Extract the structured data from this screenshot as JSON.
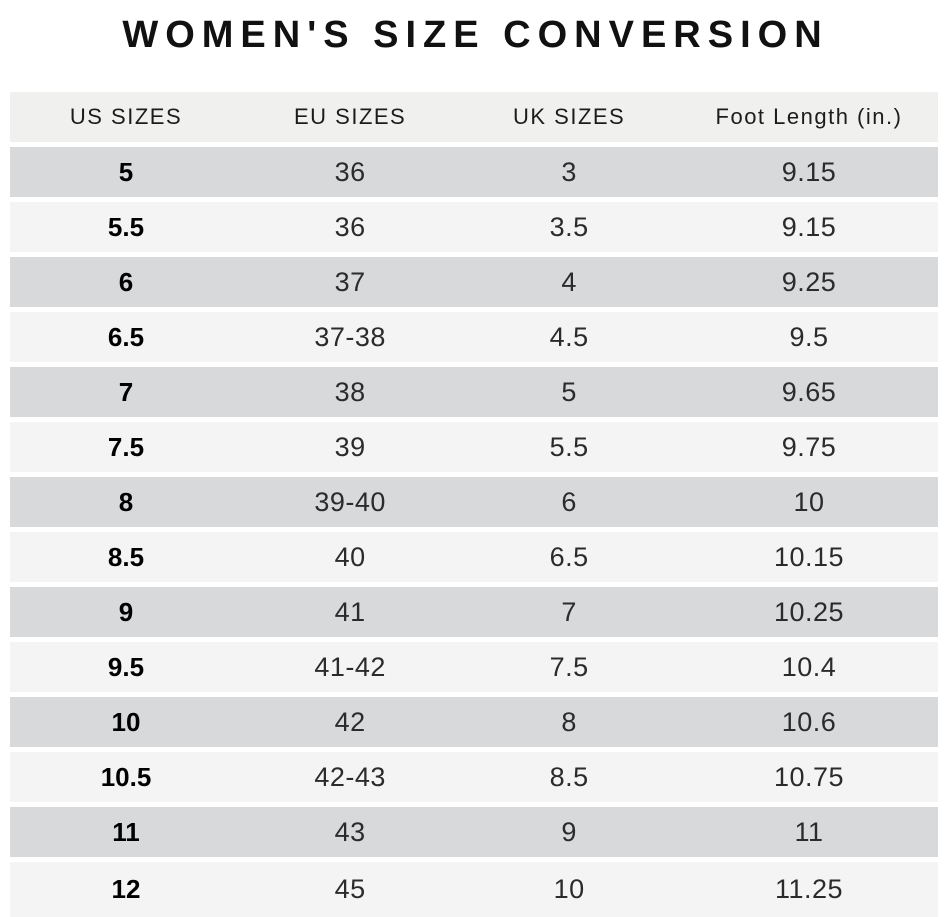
{
  "title": "WOMEN'S SIZE CONVERSION",
  "chart_data": {
    "type": "table",
    "title": "WOMEN'S SIZE CONVERSION",
    "columns": [
      "US SIZES",
      "EU SIZES",
      "UK SIZES",
      "Foot Length (in.)"
    ],
    "rows": [
      [
        "5",
        "36",
        "3",
        "9.15"
      ],
      [
        "5.5",
        "36",
        "3.5",
        "9.15"
      ],
      [
        "6",
        "37",
        "4",
        "9.25"
      ],
      [
        "6.5",
        "37-38",
        "4.5",
        "9.5"
      ],
      [
        "7",
        "38",
        "5",
        "9.65"
      ],
      [
        "7.5",
        "39",
        "5.5",
        "9.75"
      ],
      [
        "8",
        "39-40",
        "6",
        "10"
      ],
      [
        "8.5",
        "40",
        "6.5",
        "10.15"
      ],
      [
        "9",
        "41",
        "7",
        "10.25"
      ],
      [
        "9.5",
        "41-42",
        "7.5",
        "10.4"
      ],
      [
        "10",
        "42",
        "8",
        "10.6"
      ],
      [
        "10.5",
        "42-43",
        "8.5",
        "10.75"
      ],
      [
        "11",
        "43",
        "9",
        "11"
      ],
      [
        "12",
        "45",
        "10",
        "11.25"
      ]
    ],
    "layout": {
      "stripe_pattern": "first-row-dark-alternating",
      "column_alignment": "center"
    }
  },
  "colors": {
    "row_dark": "#d8d9da",
    "row_light": "#f4f4f4",
    "header_bg": "#f0f0ee",
    "text": "#1c1c1c"
  }
}
